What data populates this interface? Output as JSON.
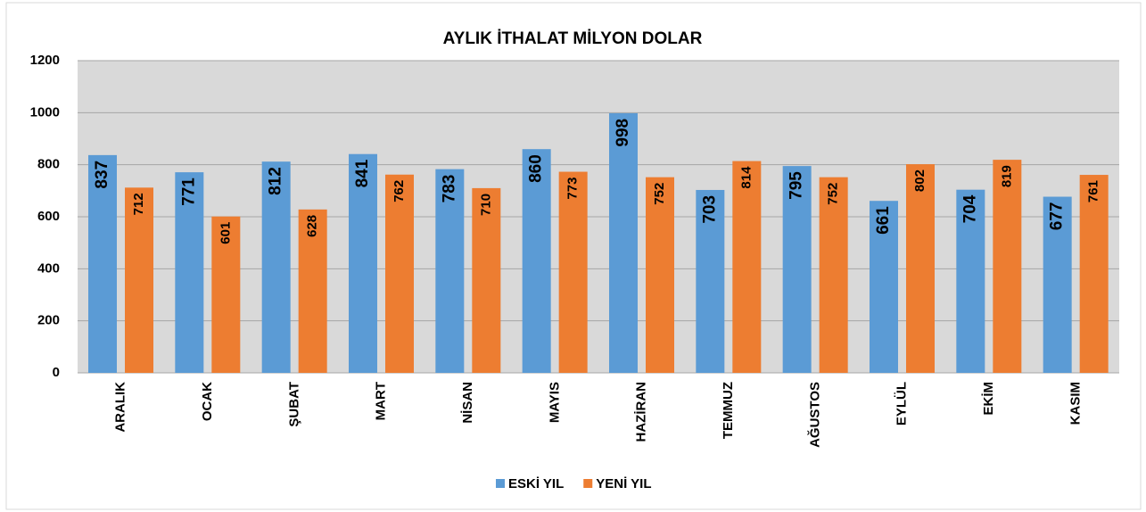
{
  "chart_data": {
    "type": "bar",
    "title": "AYLIK İTHALAT MİLYON DOLAR",
    "categories": [
      "ARALIK",
      "OCAK",
      "ŞUBAT",
      "MART",
      "NİSAN",
      "MAYIS",
      "HAZİRAN",
      "TEMMUZ",
      "AĞUSTOS",
      "EYLÜL",
      "EKİM",
      "KASIM"
    ],
    "series": [
      {
        "name": "ESKİ YIL",
        "color": "#5b9bd5",
        "values": [
          837,
          771,
          812,
          841,
          783,
          860,
          998,
          703,
          795,
          661,
          704,
          677
        ]
      },
      {
        "name": "YENİ YIL",
        "color": "#ed7d31",
        "values": [
          712,
          601,
          628,
          762,
          710,
          773,
          752,
          814,
          752,
          802,
          819,
          761
        ]
      }
    ],
    "ylim": [
      0,
      1200
    ],
    "yticks": [
      0,
      200,
      400,
      600,
      800,
      1000,
      1200
    ],
    "grid": true,
    "legend": "bottom"
  }
}
